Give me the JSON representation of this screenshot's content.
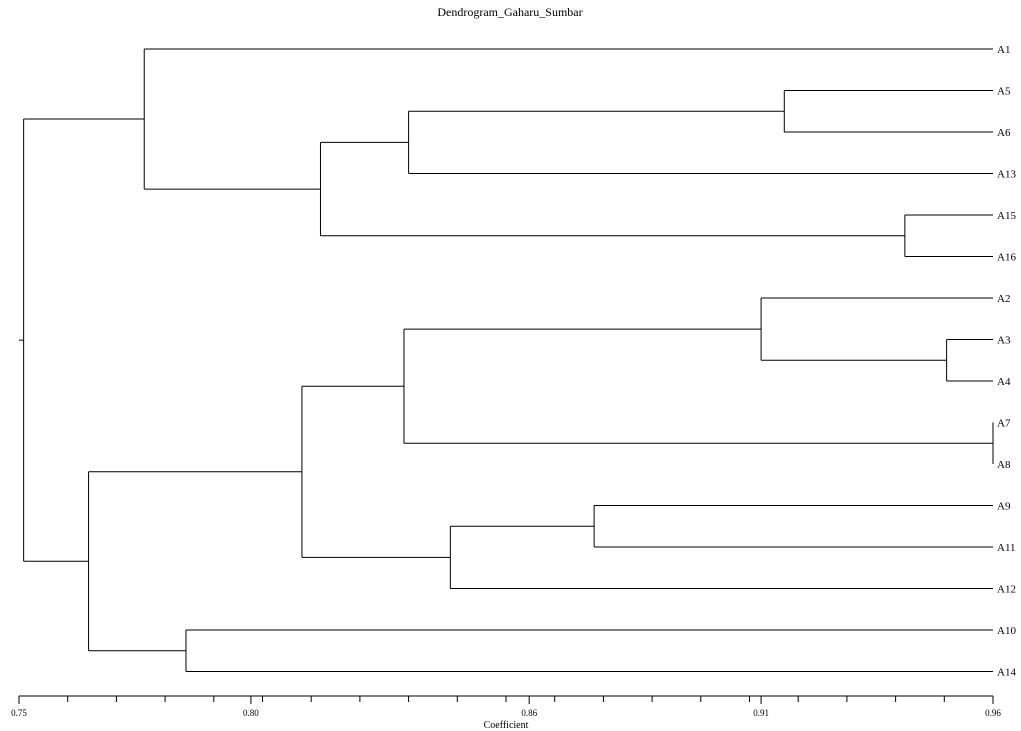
{
  "title": "Dendrogram_Gaharu_Sumbar",
  "xlabel": "Coefficient",
  "axis": {
    "min": 0.75,
    "max": 0.96,
    "labeled_ticks": [
      {
        "value": 0.75,
        "label": "0.75"
      },
      {
        "value": 0.8,
        "label": "0.80"
      },
      {
        "value": 0.86,
        "label": "0.86"
      },
      {
        "value": 0.91,
        "label": "0.91"
      },
      {
        "value": 0.96,
        "label": "0.96"
      }
    ],
    "minor_step": 0.0105
  },
  "chart_data": {
    "type": "dendrogram",
    "title": "Dendrogram_Gaharu_Sumbar",
    "xlabel": "Coefficient",
    "xlim": [
      0.75,
      0.96
    ],
    "leaves": [
      "A1",
      "A5",
      "A6",
      "A13",
      "A15",
      "A16",
      "A2",
      "A3",
      "A4",
      "A7",
      "A8",
      "A9",
      "A11",
      "A12",
      "A10",
      "A14"
    ],
    "merges": [
      {
        "id": "m1",
        "children": [
          "A7",
          "A8"
        ],
        "height": 0.96
      },
      {
        "id": "m2",
        "children": [
          "A5",
          "A6"
        ],
        "height": 0.915
      },
      {
        "id": "m3",
        "children": [
          "m2",
          "A13"
        ],
        "height": 0.834
      },
      {
        "id": "m4",
        "children": [
          "A15",
          "A16"
        ],
        "height": 0.941
      },
      {
        "id": "m5",
        "children": [
          "m3",
          "m4"
        ],
        "height": 0.815
      },
      {
        "id": "m6",
        "children": [
          "A1",
          "m5"
        ],
        "height": 0.777
      },
      {
        "id": "m7",
        "children": [
          "A3",
          "A4"
        ],
        "height": 0.95
      },
      {
        "id": "m8",
        "children": [
          "A2",
          "m7"
        ],
        "height": 0.91
      },
      {
        "id": "m9",
        "children": [
          "m8",
          "m1"
        ],
        "height": 0.833
      },
      {
        "id": "m10",
        "children": [
          "A9",
          "A11"
        ],
        "height": 0.874
      },
      {
        "id": "m11",
        "children": [
          "m10",
          "A12"
        ],
        "height": 0.843
      },
      {
        "id": "m12",
        "children": [
          "m9",
          "m11"
        ],
        "height": 0.811
      },
      {
        "id": "m13",
        "children": [
          "A10",
          "A14"
        ],
        "height": 0.786
      },
      {
        "id": "m14",
        "children": [
          "m12",
          "m13"
        ],
        "height": 0.765
      },
      {
        "id": "m15",
        "children": [
          "m6",
          "m14"
        ],
        "height": 0.751
      }
    ]
  }
}
